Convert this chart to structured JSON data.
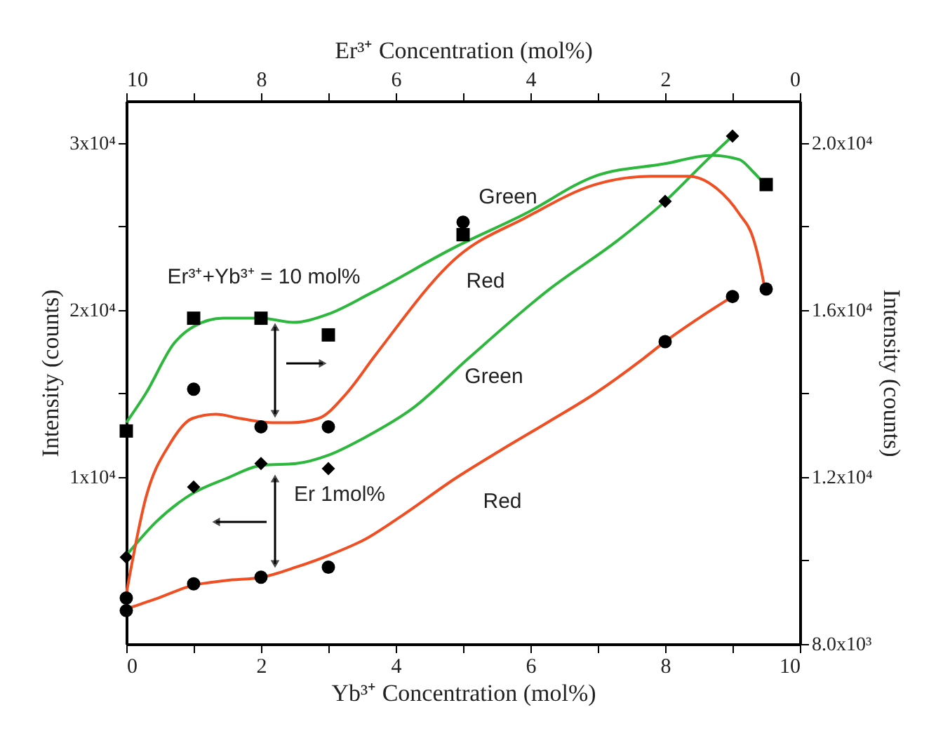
{
  "chart_data": {
    "type": "scatter",
    "xlabel": "Yb³⁺ Concentration (mol%)",
    "x2label": "Er³⁺ Concentration (mol%)",
    "ylabel": "Intensity (counts)",
    "y2label": "Intensity (counts)",
    "xlim": [
      0,
      10
    ],
    "xticks": [
      0,
      {
        "value": 1,
        "label": null
      },
      2,
      {
        "value": 3,
        "label": null
      },
      4,
      {
        "value": 5,
        "label": null
      },
      6,
      {
        "value": 7,
        "label": null
      },
      8,
      {
        "value": 9,
        "label": null
      },
      10
    ],
    "x2lim": [
      10,
      0
    ],
    "x2ticks": [
      10,
      {
        "value": 9,
        "label": null
      },
      8,
      {
        "value": 7,
        "label": null
      },
      6,
      {
        "value": 5,
        "label": null
      },
      4,
      {
        "value": 3,
        "label": null
      },
      2,
      {
        "value": 1,
        "label": null
      },
      0
    ],
    "ylim": [
      0,
      32500
    ],
    "yticks": [
      {
        "value": 10000,
        "label": "1x10⁴"
      },
      {
        "value": 15000,
        "label": null
      },
      {
        "value": 20000,
        "label": "2x10⁴"
      },
      {
        "value": 25000,
        "label": null
      },
      {
        "value": 30000,
        "label": "3x10⁴"
      }
    ],
    "y2lim": [
      8000,
      21000
    ],
    "y2ticks": [
      {
        "value": 8000,
        "label": "8.0x10³"
      },
      {
        "value": 10000,
        "label": null
      },
      {
        "value": 12000,
        "label": "1.2x10⁴"
      },
      {
        "value": 14000,
        "label": null
      },
      {
        "value": 16000,
        "label": "1.6x10⁴"
      },
      {
        "value": 18000,
        "label": null
      },
      {
        "value": 20000,
        "label": "2.0x10⁴"
      }
    ],
    "grid": false,
    "series": [
      {
        "type": "line",
        "axis": "y2",
        "color": "#2db83d",
        "line_style": "solid",
        "marker": "none",
        "x": [
          0,
          0.29,
          0.71,
          1.0,
          1.44,
          2.0,
          2.48,
          3.0,
          3.63,
          4.88,
          5.92,
          6.96,
          8.0,
          8.69,
          9.1,
          9.31,
          9.48
        ],
        "values": [
          13300,
          14000,
          15200,
          15600,
          15800,
          15800,
          15700,
          15900,
          16400,
          17500,
          18300,
          19200,
          19500,
          19700,
          19600,
          19300,
          19000
        ]
      },
      {
        "type": "line",
        "axis": "y2",
        "color": "#f04e23",
        "line_style": "solid",
        "marker": "none",
        "x": [
          0,
          0.29,
          0.65,
          0.98,
          1.33,
          1.69,
          2.17,
          2.44,
          2.85,
          3.27,
          3.69,
          4.94,
          5.92,
          6.96,
          7.79,
          8.35,
          8.77,
          9.1,
          9.31,
          9.42,
          9.48
        ],
        "values": [
          9200,
          11500,
          12800,
          13400,
          13500,
          13400,
          13300,
          13300,
          13400,
          14000,
          14900,
          17300,
          18200,
          19000,
          19200,
          19200,
          18900,
          18300,
          17700,
          17000,
          16500
        ]
      },
      {
        "type": "line",
        "color": "#2db83d",
        "line_style": "solid",
        "marker": "none",
        "x": [
          0,
          0.44,
          0.98,
          1.48,
          2.02,
          2.52,
          3.0,
          3.56,
          4.25,
          5.08,
          6.27,
          7.31,
          8.0,
          8.63,
          9.0
        ],
        "values": [
          5300,
          7300,
          9000,
          9900,
          10700,
          10800,
          11300,
          12400,
          14100,
          17100,
          21200,
          24200,
          26500,
          29000,
          30400
        ]
      },
      {
        "type": "line",
        "color": "#f04e23",
        "line_style": "solid",
        "marker": "none",
        "x": [
          0,
          0.44,
          0.98,
          1.48,
          2.02,
          2.52,
          3.0,
          3.56,
          4.1,
          4.88,
          5.56,
          6.27,
          6.96,
          7.65,
          8.0,
          8.5,
          9.0
        ],
        "values": [
          2100,
          2700,
          3500,
          3800,
          4000,
          4600,
          5300,
          6300,
          7700,
          9900,
          11600,
          13300,
          15000,
          17000,
          18100,
          19500,
          20800
        ]
      },
      {
        "axis": "y2",
        "color": "#000000",
        "marker": "square",
        "x": [
          0,
          1,
          2,
          3,
          5,
          9.5
        ],
        "values": [
          13100,
          15800,
          15800,
          15400,
          17800,
          19000
        ]
      },
      {
        "axis": "y2",
        "color": "#000000",
        "marker": "circle",
        "x": [
          0,
          1,
          2,
          3,
          5,
          9.5
        ],
        "values": [
          9100,
          14100,
          13200,
          13200,
          18100,
          16500
        ]
      },
      {
        "color": "#000000",
        "marker": "diamond",
        "x": [
          0,
          1,
          2,
          3,
          8,
          9
        ],
        "values": [
          5200,
          9400,
          10800,
          10500,
          26500,
          30400
        ]
      },
      {
        "color": "#000000",
        "marker": "circle",
        "x": [
          0,
          1,
          2,
          3,
          8,
          9
        ],
        "values": [
          2000,
          3600,
          4000,
          4600,
          18100,
          20800
        ]
      }
    ],
    "annotations": [
      "Green",
      "Red",
      "Green",
      "Red",
      "Er³⁺+Yb³⁺ = 10 mol%",
      "Er 1mol%"
    ]
  }
}
